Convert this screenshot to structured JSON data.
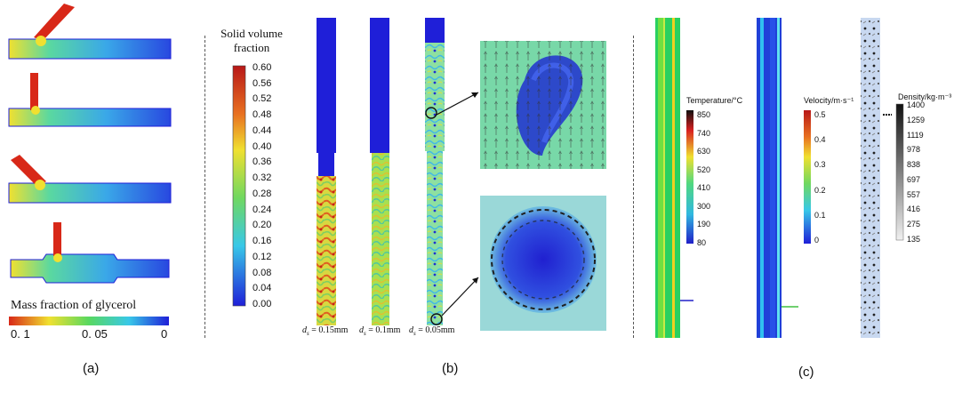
{
  "panel_a": {
    "label": "(a)",
    "legend_title": "Mass fraction of glycerol",
    "legend_ticks": [
      "0. 1",
      "0. 05",
      "0"
    ]
  },
  "panel_b": {
    "label": "(b)",
    "colorbar_title": [
      "Solid volume",
      "fraction"
    ],
    "colorbar_ticks": [
      "0.60",
      "0.56",
      "0.52",
      "0.48",
      "0.44",
      "0.40",
      "0.36",
      "0.32",
      "0.28",
      "0.24",
      "0.20",
      "0.16",
      "0.12",
      "0.08",
      "0.04",
      "0.00"
    ],
    "column_labels": [
      {
        "sym": "d",
        "sub": "s",
        "val": " = 0.15mm"
      },
      {
        "sym": "d",
        "sub": "s",
        "val": " = 0.1mm"
      },
      {
        "sym": "d",
        "sub": "s",
        "val": " = 0.05mm"
      }
    ]
  },
  "panel_c": {
    "label": "(c)",
    "temperature": {
      "title": "Temperature/°C",
      "ticks": [
        "850",
        "740",
        "630",
        "520",
        "410",
        "300",
        "190",
        "80"
      ]
    },
    "velocity": {
      "title": "Velocity/m·s⁻¹",
      "ticks": [
        "0.5",
        "0.4",
        "0.3",
        "0.2",
        "0.1",
        "0"
      ]
    },
    "density": {
      "title": "Density/kg·m⁻³",
      "ticks": [
        "1400",
        "1259",
        "1119",
        "978",
        "838",
        "697",
        "557",
        "416",
        "275",
        "135"
      ]
    }
  },
  "colors": {
    "jet_blue": "#1f1fd8",
    "jet_cyan": "#38c8e8",
    "jet_green": "#58d860",
    "jet_yellow": "#f0e830",
    "jet_red": "#d82818"
  }
}
